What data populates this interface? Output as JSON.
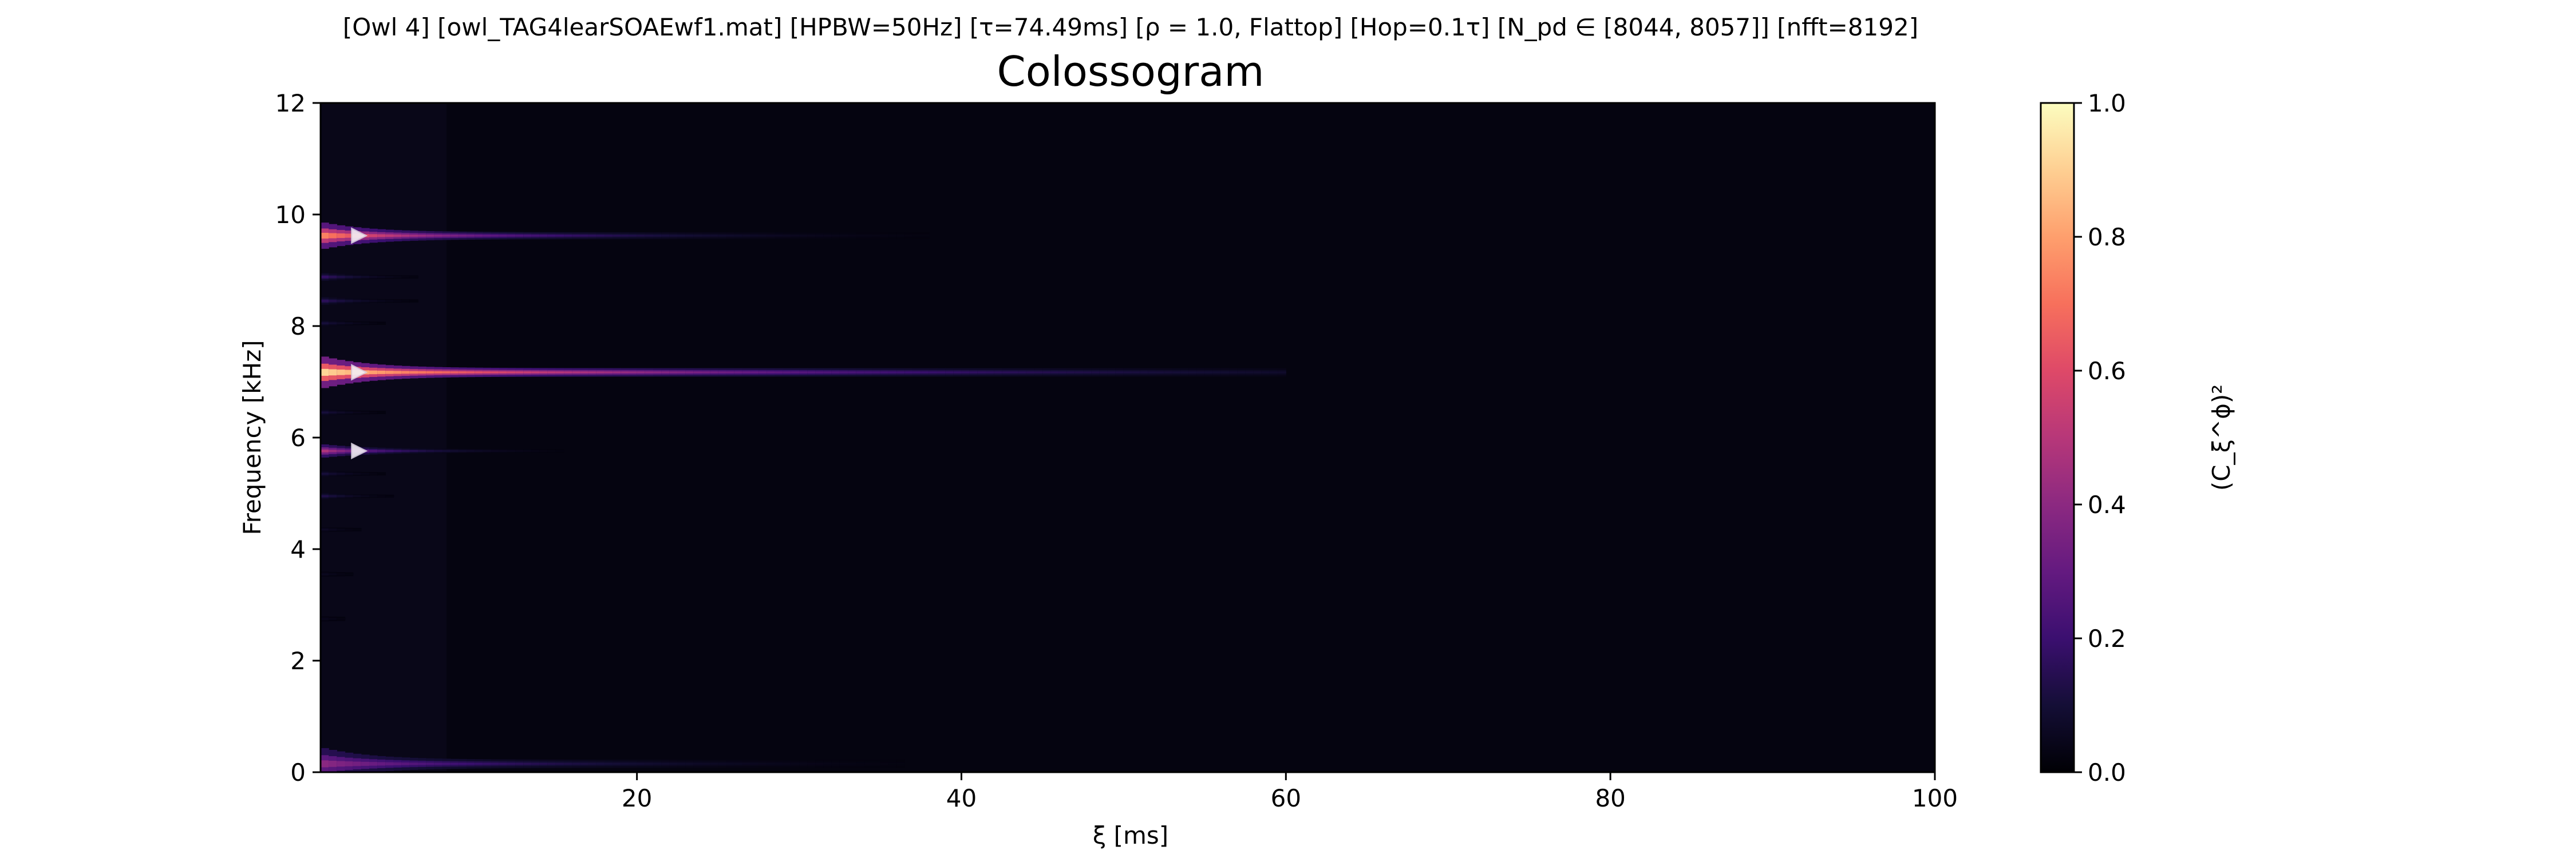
{
  "figure": {
    "suptitle": "[Owl 4]   [owl_TAG4learSOAEwf1.mat]   [HPBW=50Hz]   [τ=74.49ms]   [ρ = 1.0, Flattop]   [Hop=0.1τ]   [N_pd ∈ [8044, 8057]]   [nfft=8192]"
  },
  "chart_data": {
    "type": "heatmap",
    "title": "Colossogram",
    "xlabel": "ξ [ms]",
    "ylabel": "Frequency [kHz]",
    "xlim": [
      0.5,
      100
    ],
    "ylim": [
      0,
      12
    ],
    "xticks": [
      20,
      40,
      60,
      80,
      100
    ],
    "yticks": [
      0,
      2,
      4,
      6,
      8,
      10,
      12
    ],
    "grid": false,
    "colormap": "magma",
    "colorbar": {
      "label": "(C_ξ^ϕ)²",
      "range": [
        0.0,
        1.0
      ],
      "ticks": [
        0.0,
        0.2,
        0.4,
        0.6,
        0.8,
        1.0
      ]
    },
    "series": [
      {
        "frequency_khz": 9.62,
        "peak": 0.75,
        "decay_ms": 11,
        "extent_ms": 40,
        "start_width_khz": 0.5
      },
      {
        "frequency_khz": 7.17,
        "peak": 0.92,
        "decay_ms": 24,
        "extent_ms": 60,
        "start_width_khz": 0.6
      },
      {
        "frequency_khz": 5.76,
        "peak": 0.5,
        "decay_ms": 5,
        "extent_ms": 16,
        "start_width_khz": 0.25
      },
      {
        "frequency_khz": 0.15,
        "peak": 0.4,
        "decay_ms": 13,
        "extent_ms": 40,
        "start_width_khz": 0.6
      },
      {
        "frequency_khz": 8.88,
        "peak": 0.2,
        "decay_ms": 3,
        "extent_ms": 12,
        "start_width_khz": 0.15
      },
      {
        "frequency_khz": 8.45,
        "peak": 0.18,
        "decay_ms": 3,
        "extent_ms": 12,
        "start_width_khz": 0.15
      },
      {
        "frequency_khz": 8.05,
        "peak": 0.12,
        "decay_ms": 2.5,
        "extent_ms": 10,
        "start_width_khz": 0.12
      },
      {
        "frequency_khz": 6.45,
        "peak": 0.12,
        "decay_ms": 2.5,
        "extent_ms": 10,
        "start_width_khz": 0.12
      },
      {
        "frequency_khz": 5.35,
        "peak": 0.12,
        "decay_ms": 2.5,
        "extent_ms": 10,
        "start_width_khz": 0.12
      },
      {
        "frequency_khz": 4.95,
        "peak": 0.15,
        "decay_ms": 2.5,
        "extent_ms": 10,
        "start_width_khz": 0.12
      },
      {
        "frequency_khz": 4.35,
        "peak": 0.07,
        "decay_ms": 2.5,
        "extent_ms": 8,
        "start_width_khz": 0.1
      },
      {
        "frequency_khz": 3.55,
        "peak": 0.06,
        "decay_ms": 2.5,
        "extent_ms": 8,
        "start_width_khz": 0.1
      },
      {
        "frequency_khz": 2.75,
        "peak": 0.05,
        "decay_ms": 2.5,
        "extent_ms": 8,
        "start_width_khz": 0.1
      }
    ],
    "markers": [
      {
        "xi_ms": 2.8,
        "frequency_khz": 9.62
      },
      {
        "xi_ms": 2.8,
        "frequency_khz": 7.17
      },
      {
        "xi_ms": 2.8,
        "frequency_khz": 5.76
      }
    ]
  }
}
